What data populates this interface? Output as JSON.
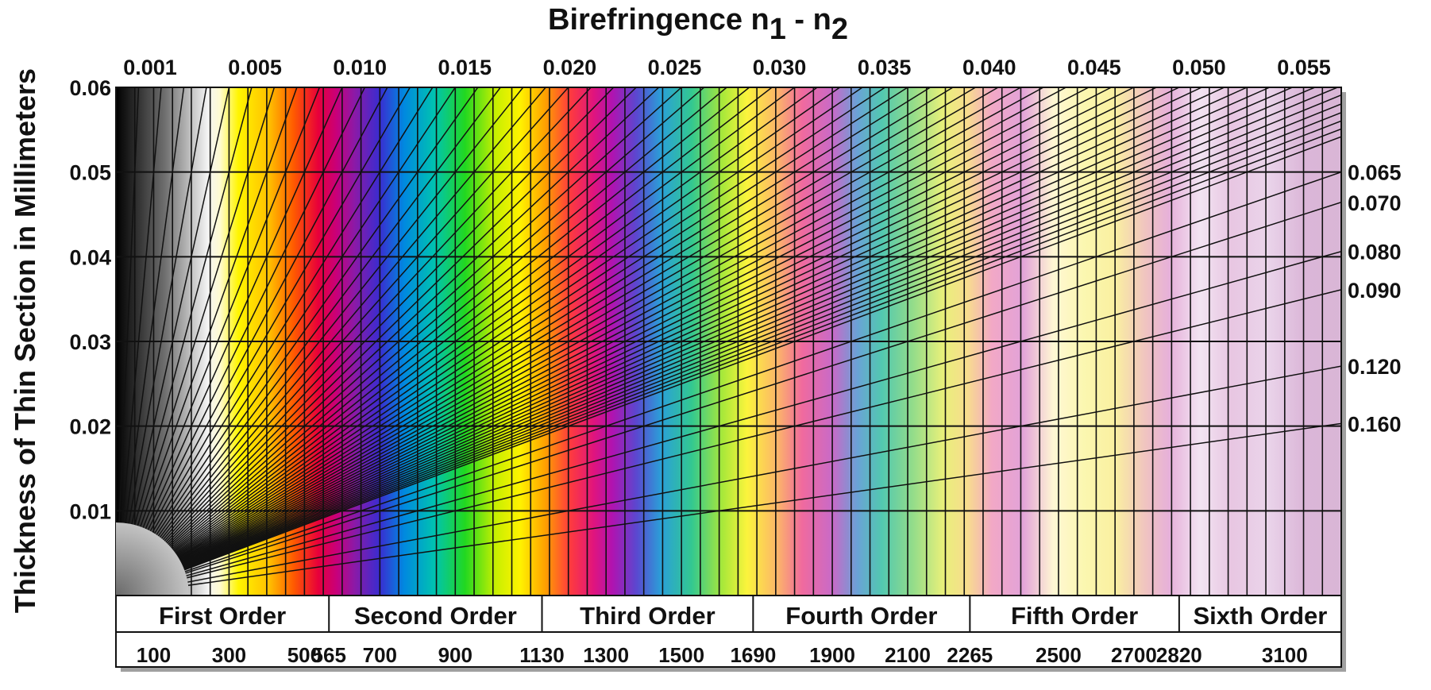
{
  "chart_data": {
    "type": "heatmap",
    "title_main": "Birefringence n",
    "title_sub1": "1",
    "title_sep": " - n",
    "title_sub2": "2",
    "ylabel": "Thickness of Thin Section in Millimeters",
    "x_tick_labels": [
      "0.001",
      "0.005",
      "0.010",
      "0.015",
      "0.020",
      "0.025",
      "0.030",
      "0.035",
      "0.040",
      "0.045",
      "0.050",
      "0.055"
    ],
    "y_ticks": [
      0.01,
      0.02,
      0.03,
      0.04,
      0.05,
      0.06
    ],
    "y_tick_labels": [
      "0.01",
      "0.02",
      "0.03",
      "0.04",
      "0.05",
      "0.06"
    ],
    "ylim": [
      0,
      0.06
    ],
    "retardation_range_nm": [
      0,
      3250
    ],
    "right_labels": [
      {
        "label": "0.065",
        "birefringence": 0.065
      },
      {
        "label": "0.070",
        "birefringence": 0.07
      },
      {
        "label": "0.080",
        "birefringence": 0.08
      },
      {
        "label": "0.090",
        "birefringence": 0.09
      },
      {
        "label": "0.120",
        "birefringence": 0.12
      },
      {
        "label": "0.160",
        "birefringence": 0.16
      }
    ],
    "orders": [
      {
        "label": "First Order",
        "start_nm": 0,
        "end_nm": 565
      },
      {
        "label": "Second Order",
        "start_nm": 565,
        "end_nm": 1130
      },
      {
        "label": "Third Order",
        "start_nm": 1130,
        "end_nm": 1690
      },
      {
        "label": "Fourth Order",
        "start_nm": 1690,
        "end_nm": 2265
      },
      {
        "label": "Fifth Order",
        "start_nm": 2265,
        "end_nm": 2820
      },
      {
        "label": "Sixth Order",
        "start_nm": 2820,
        "end_nm": 3250
      }
    ],
    "retardation_labels": [
      "100",
      "300",
      "500",
      "565",
      "700",
      "900",
      "1130",
      "1300",
      "1500",
      "1690",
      "1900",
      "2100",
      "2265",
      "2500",
      "2700",
      "2820",
      "3100"
    ],
    "retardation_values": [
      100,
      300,
      500,
      565,
      700,
      900,
      1130,
      1300,
      1500,
      1690,
      1900,
      2100,
      2265,
      2500,
      2700,
      2820,
      3100
    ],
    "colors": {
      "line": "#111111",
      "text": "#111111"
    }
  }
}
